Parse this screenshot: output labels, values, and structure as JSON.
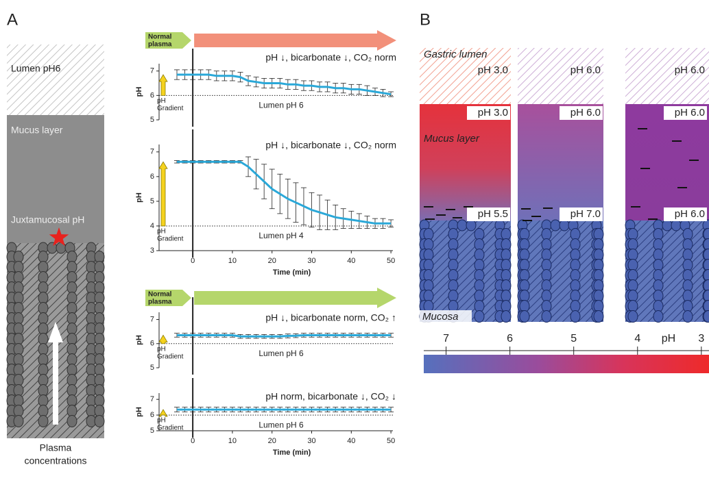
{
  "panel_a": {
    "label": "A",
    "lumen": "Lumen pH6",
    "mucus": "Mucus layer",
    "juxtamucosal": "Juxtamucosal pH",
    "plasma": [
      "Plasma",
      "concentrations"
    ]
  },
  "chart_data": [
    {
      "type": "line",
      "banner": {
        "label": [
          "Normal",
          "plasma"
        ],
        "color": "#b5d66b",
        "arrow_color": "#f2907a"
      },
      "condition": "pH ↓, bicarbonate ↓, CO₂ norm",
      "ylabel": "pH",
      "lumen_label": "Lumen pH 6",
      "gradient_label": [
        "pH",
        "Gradient"
      ],
      "reference_line": 6,
      "xlim": [
        -8.5,
        50.5
      ],
      "ylim": [
        5,
        7.3
      ],
      "yticks": [
        5,
        6,
        7
      ],
      "x": [
        -4,
        -2,
        0,
        2,
        4,
        6,
        8,
        10,
        12,
        14,
        16,
        18,
        20,
        22,
        24,
        26,
        28,
        30,
        32,
        34,
        36,
        38,
        40,
        42,
        44,
        46,
        48,
        50
      ],
      "series": [
        {
          "color": "#2aa8d8",
          "values": [
            6.85,
            6.85,
            6.85,
            6.85,
            6.85,
            6.8,
            6.8,
            6.8,
            6.75,
            6.6,
            6.55,
            6.5,
            6.5,
            6.5,
            6.45,
            6.45,
            6.4,
            6.4,
            6.35,
            6.35,
            6.3,
            6.3,
            6.25,
            6.25,
            6.2,
            6.15,
            6.1,
            6.05
          ],
          "errors": [
            0.2,
            0.2,
            0.2,
            0.2,
            0.2,
            0.2,
            0.2,
            0.2,
            0.2,
            0.2,
            0.2,
            0.2,
            0.2,
            0.2,
            0.2,
            0.2,
            0.2,
            0.2,
            0.2,
            0.2,
            0.2,
            0.2,
            0.2,
            0.2,
            0.2,
            0.15,
            0.15,
            0.1
          ]
        }
      ]
    },
    {
      "type": "line",
      "condition": "pH ↓, bicarbonate ↓, CO₂ norm",
      "ylabel": "pH",
      "xlabel": "Time (min)",
      "lumen_label": "Lumen pH 4",
      "gradient_label": [
        "pH",
        "Gradient"
      ],
      "reference_line": 4,
      "xlim": [
        -8.5,
        50.5
      ],
      "ylim": [
        3,
        7.3
      ],
      "yticks": [
        3,
        4,
        5,
        6,
        7
      ],
      "xticks": [
        0,
        10,
        20,
        30,
        40,
        50
      ],
      "x": [
        -4,
        -2,
        0,
        2,
        4,
        6,
        8,
        10,
        12,
        14,
        16,
        18,
        20,
        22,
        24,
        26,
        28,
        30,
        32,
        34,
        36,
        38,
        40,
        42,
        44,
        46,
        48,
        50
      ],
      "series": [
        {
          "color": "#2aa8d8",
          "values": [
            6.6,
            6.6,
            6.6,
            6.6,
            6.6,
            6.6,
            6.6,
            6.6,
            6.6,
            6.4,
            6.1,
            5.8,
            5.5,
            5.3,
            5.1,
            4.95,
            4.8,
            4.65,
            4.55,
            4.45,
            4.35,
            4.3,
            4.25,
            4.2,
            4.15,
            4.1,
            4.1,
            4.1
          ],
          "errors": [
            0.05,
            0.05,
            0.05,
            0.05,
            0.05,
            0.05,
            0.05,
            0.05,
            0.05,
            0.4,
            0.6,
            0.7,
            0.8,
            0.8,
            0.8,
            0.8,
            0.75,
            0.7,
            0.7,
            0.6,
            0.5,
            0.4,
            0.35,
            0.3,
            0.25,
            0.2,
            0.2,
            0.15
          ]
        }
      ]
    },
    {
      "type": "line",
      "banner": {
        "label": [
          "Normal",
          "plasma"
        ],
        "color": "#b5d66b",
        "arrow_color": "#b5d66b"
      },
      "condition": "pH ↓, bicarbonate norm, CO₂ ↑",
      "ylabel": "pH",
      "lumen_label": "Lumen pH 6",
      "gradient_label": [
        "pH",
        "Gradient"
      ],
      "reference_line": 6,
      "xlim": [
        -8.5,
        50.5
      ],
      "ylim": [
        5,
        7.3
      ],
      "yticks": [
        5,
        6,
        7
      ],
      "x": [
        -4,
        -2,
        0,
        2,
        4,
        6,
        8,
        10,
        12,
        14,
        16,
        18,
        20,
        22,
        24,
        26,
        28,
        30,
        32,
        34,
        36,
        38,
        40,
        42,
        44,
        46,
        48,
        50
      ],
      "series": [
        {
          "color": "#2aa8d8",
          "values": [
            6.35,
            6.35,
            6.35,
            6.35,
            6.35,
            6.35,
            6.35,
            6.35,
            6.3,
            6.3,
            6.3,
            6.3,
            6.3,
            6.3,
            6.32,
            6.33,
            6.35,
            6.35,
            6.35,
            6.35,
            6.35,
            6.35,
            6.35,
            6.35,
            6.35,
            6.35,
            6.35,
            6.35
          ],
          "errors": [
            0.08,
            0.08,
            0.08,
            0.08,
            0.08,
            0.08,
            0.08,
            0.08,
            0.08,
            0.08,
            0.08,
            0.08,
            0.08,
            0.08,
            0.08,
            0.08,
            0.08,
            0.08,
            0.08,
            0.08,
            0.08,
            0.08,
            0.08,
            0.08,
            0.08,
            0.08,
            0.08,
            0.08
          ]
        }
      ]
    },
    {
      "type": "line",
      "condition": "pH norm, bicarbonate ↓, CO₂ ↓",
      "ylabel": "pH",
      "xlabel": "Time (min)",
      "lumen_label": "Lumen pH 6",
      "gradient_label": [
        "pH",
        "Gradient"
      ],
      "reference_line": 6,
      "xlim": [
        -8.5,
        50.5
      ],
      "ylim": [
        5,
        7.4
      ],
      "yticks": [
        5,
        6,
        7
      ],
      "xticks": [
        0,
        10,
        20,
        30,
        40,
        50
      ],
      "x": [
        -4,
        -2,
        0,
        2,
        4,
        6,
        8,
        10,
        12,
        14,
        16,
        18,
        20,
        22,
        24,
        26,
        28,
        30,
        32,
        34,
        36,
        38,
        40,
        42,
        44,
        46,
        48,
        50
      ],
      "series": [
        {
          "color": "#2aa8d8",
          "values": [
            6.35,
            6.35,
            6.35,
            6.35,
            6.35,
            6.35,
            6.35,
            6.35,
            6.35,
            6.35,
            6.35,
            6.35,
            6.35,
            6.35,
            6.35,
            6.35,
            6.35,
            6.35,
            6.35,
            6.35,
            6.35,
            6.35,
            6.35,
            6.35,
            6.35,
            6.35,
            6.35,
            6.35
          ],
          "errors": [
            0.15,
            0.15,
            0.15,
            0.15,
            0.15,
            0.15,
            0.15,
            0.15,
            0.15,
            0.15,
            0.15,
            0.15,
            0.15,
            0.15,
            0.15,
            0.15,
            0.15,
            0.15,
            0.15,
            0.15,
            0.15,
            0.15,
            0.15,
            0.15,
            0.15,
            0.15,
            0.15,
            0.15
          ]
        }
      ]
    }
  ],
  "panel_b": {
    "label": "B",
    "lumen_label": "Gastric lumen",
    "mucus_label": "Mucus layer",
    "mucosa_label": "Mucosa",
    "columns": [
      {
        "lumen": "pH 3.0",
        "mucus_top": "pH 3.0",
        "mucus_bottom": "pH 5.5"
      },
      {
        "lumen": "pH 6.0",
        "mucus_top": "pH 6.0",
        "mucus_bottom": "pH 7.0"
      },
      {
        "lumen": "pH 6.0",
        "mucus_top": "pH 6.0",
        "mucus_bottom": "pH 6.0"
      }
    ],
    "scale": {
      "label": "pH",
      "xlim": [
        7.35,
        2.88
      ],
      "ticks": [
        7,
        6,
        5,
        4,
        3
      ]
    }
  }
}
